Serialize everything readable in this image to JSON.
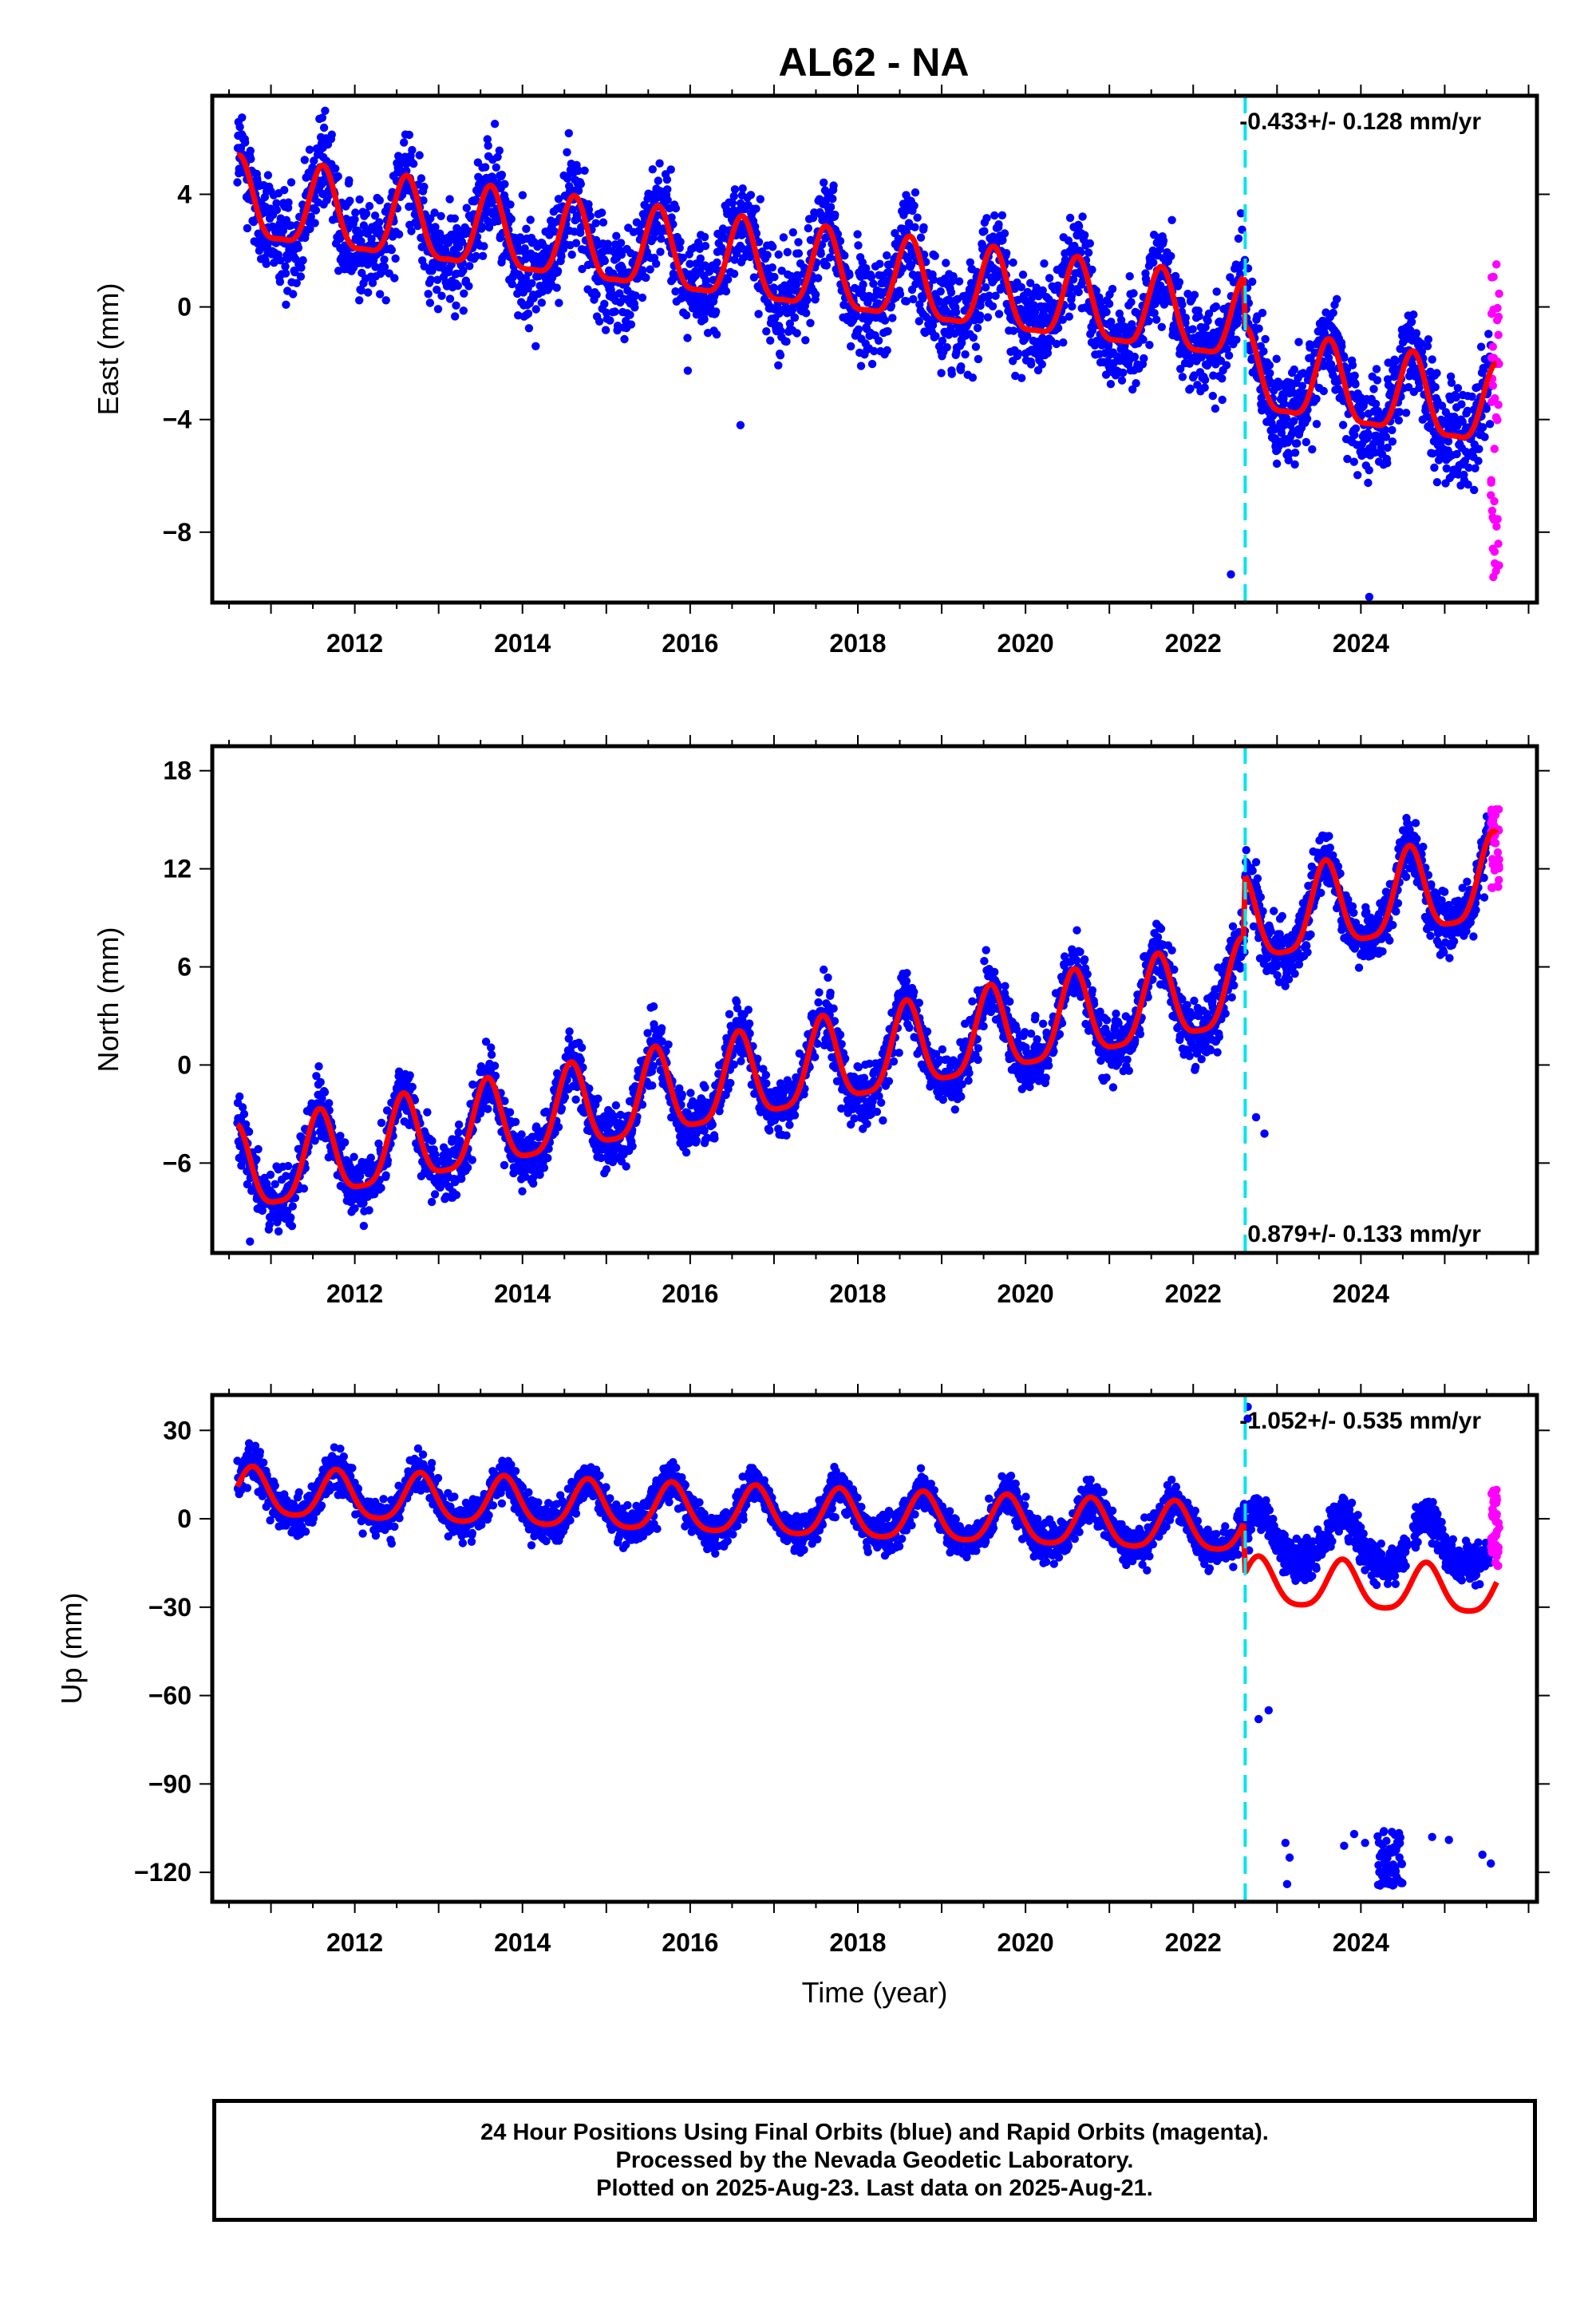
{
  "title": "AL62 - NA",
  "colors": {
    "final_orbits": "#0000ff",
    "rapid_orbits": "#ff00ff",
    "model": "#ff0000",
    "event_line": "#00e5ee",
    "frame": "#000000"
  },
  "caption": {
    "line1": "24 Hour Positions Using Final Orbits (blue) and Rapid Orbits (magenta).",
    "line2": "Processed by the Nevada Geodetic Laboratory.",
    "line3": "Plotted on 2025-Aug-23. Last data on 2025-Aug-21."
  },
  "chart_data": [
    {
      "type": "scatter",
      "component": "East",
      "ylabel": "East (mm)",
      "xlabel": "",
      "xlim": [
        2010.3,
        2026.1
      ],
      "ylim": [
        -10.5,
        7.5
      ],
      "xticks": [
        2012,
        2014,
        2016,
        2018,
        2020,
        2022,
        2024
      ],
      "yticks": [
        -8,
        -4,
        0,
        4
      ],
      "rate_label": "-0.433+/- 0.128 mm/yr",
      "rate_position": "top-right",
      "event_line_x": 2022.62,
      "model": {
        "segments": [
          {
            "x0": 2010.6,
            "x1": 2022.6,
            "intercept_at_2010": 3.6,
            "slope": -0.36
          },
          {
            "x0": 2022.62,
            "x1": 2025.62,
            "intercept_at_2022_62": -2.5,
            "slope": -0.433
          }
        ],
        "annual_amplitude": 1.4,
        "annual_peak_phase": 0.62,
        "semiannual_amplitude": 0.4
      },
      "observations": {
        "scatter_mm": 1.25,
        "start": 2010.6,
        "end": 2025.55
      },
      "rapid_orbits": {
        "start": 2025.55,
        "end": 2025.65,
        "center": -2.5,
        "range": [
          -9.7,
          1.6
        ]
      },
      "outliers": [
        {
          "x": 2022.45,
          "y": -9.5
        },
        {
          "x": 2024.1,
          "y": -10.3
        },
        {
          "x": 2016.6,
          "y": -4.2
        }
      ]
    },
    {
      "type": "scatter",
      "component": "North",
      "ylabel": "North (mm)",
      "xlabel": "",
      "xlim": [
        2010.3,
        2026.1
      ],
      "ylim": [
        -11.5,
        19.5
      ],
      "xticks": [
        2012,
        2014,
        2016,
        2018,
        2020,
        2022,
        2024
      ],
      "yticks": [
        -6,
        0,
        6,
        12,
        18
      ],
      "rate_label": "0.879+/- 0.133 mm/yr",
      "rate_position": "bottom-right",
      "event_line_x": 2022.62,
      "model": {
        "segments": [
          {
            "x0": 2010.6,
            "x1": 2022.6,
            "intercept_at_2010": -6.8,
            "slope": 0.95
          },
          {
            "x0": 2022.62,
            "x1": 2025.62,
            "intercept_at_2022_62": 8.5,
            "slope": 0.879
          }
        ],
        "annual_amplitude": 2.6,
        "annual_peak_phase": 0.58,
        "semiannual_amplitude": 0.6
      },
      "observations": {
        "scatter_mm": 1.3,
        "start": 2010.6,
        "end": 2025.55
      },
      "rapid_orbits": {
        "start": 2025.55,
        "end": 2025.65,
        "center": 13.5,
        "range": [
          10.8,
          15.8
        ]
      },
      "outliers": [
        {
          "x": 2022.75,
          "y": -3.2
        },
        {
          "x": 2022.85,
          "y": -4.2
        },
        {
          "x": 2010.75,
          "y": -10.8
        }
      ]
    },
    {
      "type": "scatter",
      "component": "Up",
      "ylabel": "Up (mm)",
      "xlabel": "Time (year)",
      "xlim": [
        2010.3,
        2026.1
      ],
      "ylim": [
        -130,
        42
      ],
      "xticks": [
        2012,
        2014,
        2016,
        2018,
        2020,
        2022,
        2024
      ],
      "yticks": [
        -120,
        -90,
        -60,
        -30,
        0,
        30
      ],
      "rate_label": "-1.052+/- 0.535 mm/yr",
      "rate_position": "top-right",
      "event_line_x": 2022.62,
      "model": {
        "segments": [
          {
            "x0": 2010.6,
            "x1": 2022.6,
            "intercept_at_2010": 8.5,
            "slope": -1.05
          },
          {
            "x0": 2022.62,
            "x1": 2025.62,
            "intercept_at_2022_62": -22,
            "slope": -1.052
          }
        ],
        "annual_amplitude": 8,
        "annual_peak_phase": 0.78,
        "semiannual_amplitude": 1.5
      },
      "observations": {
        "scatter_mm": 4.5,
        "start": 2010.6,
        "end": 2025.55,
        "offset_after_event": 15,
        "gap": [
          2024.55,
          2024.62
        ]
      },
      "rapid_orbits": {
        "start": 2025.55,
        "end": 2025.65,
        "center": -6,
        "range": [
          -16,
          10
        ]
      },
      "outliers": [
        {
          "x": 2022.65,
          "y": 38
        },
        {
          "x": 2022.65,
          "y": 34
        },
        {
          "x": 2022.78,
          "y": -68
        },
        {
          "x": 2022.9,
          "y": -65
        },
        {
          "x": 2023.1,
          "y": -110
        },
        {
          "x": 2023.12,
          "y": -124
        },
        {
          "x": 2023.15,
          "y": -115
        },
        {
          "x": 2023.8,
          "y": -111
        },
        {
          "x": 2023.92,
          "y": -107
        },
        {
          "x": 2024.05,
          "y": -110
        },
        {
          "x": 2024.85,
          "y": -108
        },
        {
          "x": 2025.05,
          "y": -109
        },
        {
          "x": 2025.45,
          "y": -114
        },
        {
          "x": 2025.55,
          "y": -117
        }
      ],
      "outlier_cluster": {
        "start": 2024.2,
        "end": 2024.5,
        "y_range": [
          -125,
          -106
        ]
      }
    }
  ]
}
